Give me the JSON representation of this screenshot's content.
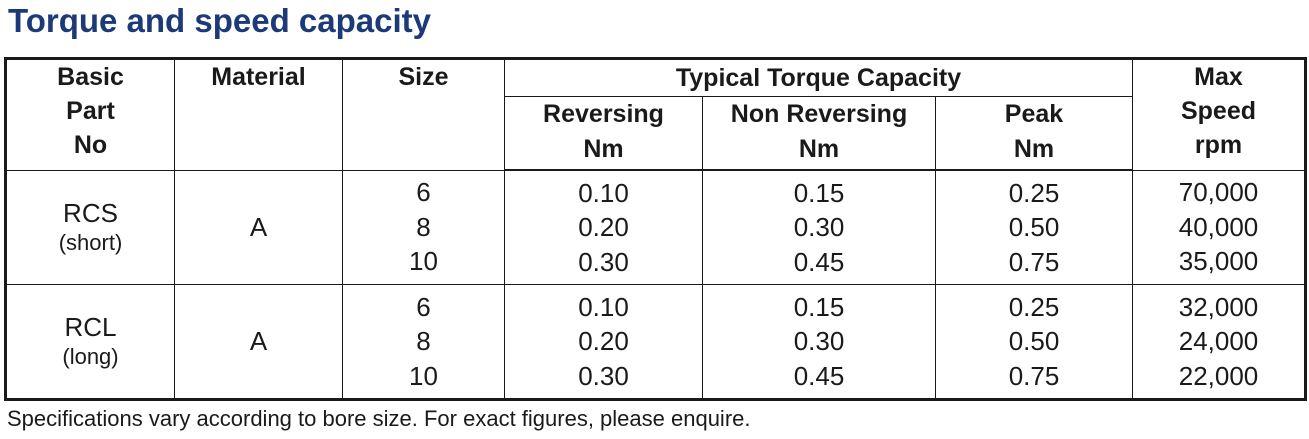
{
  "title": "Torque and speed capacity",
  "headers": {
    "basic_part_no": [
      "Basic",
      "Part",
      "No"
    ],
    "material": "Material",
    "size": "Size",
    "typical_torque_capacity": "Typical Torque Capacity",
    "reversing": [
      "Reversing",
      "Nm"
    ],
    "non_reversing": [
      "Non Reversing",
      "Nm"
    ],
    "peak": [
      "Peak",
      "Nm"
    ],
    "max_speed": [
      "Max",
      "Speed",
      "rpm"
    ]
  },
  "rows": [
    {
      "part": "RCS",
      "part_note": "(short)",
      "material": "A",
      "sizes": [
        "6",
        "8",
        "10"
      ],
      "reversing": [
        "0.10",
        "0.20",
        "0.30"
      ],
      "non_reversing": [
        "0.15",
        "0.30",
        "0.45"
      ],
      "peak": [
        "0.25",
        "0.50",
        "0.75"
      ],
      "max_speed": [
        "70,000",
        "40,000",
        "35,000"
      ]
    },
    {
      "part": "RCL",
      "part_note": "(long)",
      "material": "A",
      "sizes": [
        "6",
        "8",
        "10"
      ],
      "reversing": [
        "0.10",
        "0.20",
        "0.30"
      ],
      "non_reversing": [
        "0.15",
        "0.30",
        "0.45"
      ],
      "peak": [
        "0.25",
        "0.50",
        "0.75"
      ],
      "max_speed": [
        "32,000",
        "24,000",
        "22,000"
      ]
    }
  ],
  "footnote": "Specifications vary according to bore size. For exact figures, please enquire.",
  "colors": {
    "title": "#1d3a78",
    "text": "#1a1a1a",
    "border": "#1a1a1a",
    "background": "#ffffff"
  }
}
